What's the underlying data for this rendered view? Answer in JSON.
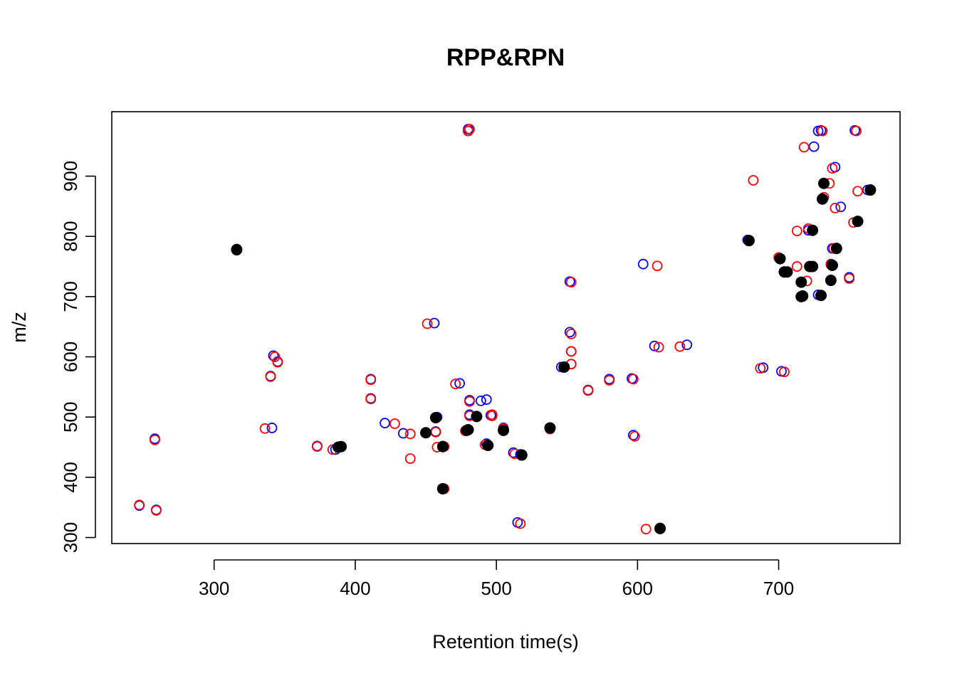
{
  "chart_data": {
    "type": "scatter",
    "title": "RPP&RPN",
    "xlabel": "Retention time(s)",
    "ylabel": "m/z",
    "xlim": [
      227.5,
      786
    ],
    "ylim": [
      290,
      1007
    ],
    "xticks": [
      300,
      400,
      500,
      600,
      700
    ],
    "yticks": [
      300,
      400,
      500,
      600,
      700,
      800,
      900
    ],
    "grid": false,
    "legend": "none",
    "series": [
      {
        "marker": "open-circle",
        "color": "#0000ff",
        "x": [
          247,
          258,
          259,
          316,
          341,
          342,
          345,
          340,
          373,
          386,
          389,
          411,
          411,
          421,
          434,
          456,
          457,
          458,
          462,
          462,
          474,
          479,
          480,
          480,
          481,
          481,
          486,
          489,
          493,
          493,
          496,
          505,
          512,
          515,
          517,
          546,
          552,
          552,
          553,
          553,
          565,
          580,
          596,
          597,
          604,
          612,
          616,
          635,
          678,
          689,
          702,
          721,
          725,
          728,
          728,
          730,
          737,
          738,
          740,
          744,
          750,
          754,
          763
        ],
        "y": [
          353,
          464,
          346,
          779,
          482,
          602,
          592,
          568,
          452,
          446,
          450,
          563,
          531,
          490,
          473,
          656,
          476,
          500,
          381,
          452,
          556,
          478,
          975,
          978,
          528,
          504,
          501,
          527,
          529,
          456,
          503,
          482,
          441,
          325,
          438,
          583,
          725,
          641,
          609,
          588,
          545,
          563,
          564,
          470,
          754,
          618,
          316,
          620,
          794,
          582,
          576,
          810,
          949,
          975,
          703,
          976,
          754,
          780,
          915,
          849,
          732,
          976,
          877
        ]
      },
      {
        "marker": "open-circle",
        "color": "#ff0000",
        "x": [
          247,
          258,
          259,
          316,
          336,
          340,
          343,
          345,
          373,
          384,
          390,
          411,
          411,
          428,
          439,
          439,
          451,
          457,
          458,
          463,
          463,
          471,
          478,
          480,
          481,
          481,
          481,
          492,
          497,
          497,
          505,
          513,
          517,
          538,
          548,
          553,
          553,
          553,
          553,
          565,
          580,
          597,
          598,
          606,
          614,
          615,
          630,
          682,
          687,
          700,
          704,
          713,
          713,
          718,
          720,
          721,
          730,
          731,
          732,
          736,
          737,
          738,
          739,
          740,
          753,
          755,
          756,
          750,
          679
        ],
        "y": [
          354,
          462,
          345,
          777,
          481,
          567,
          600,
          591,
          451,
          446,
          451,
          562,
          530,
          489,
          472,
          431,
          655,
          475,
          450,
          381,
          451,
          555,
          477,
          975,
          978,
          526,
          502,
          454,
          502,
          504,
          481,
          439,
          323,
          480,
          583,
          724,
          638,
          609,
          588,
          544,
          561,
          563,
          468,
          314,
          751,
          616,
          617,
          893,
          581,
          765,
          575,
          809,
          750,
          948,
          726,
          813,
          702,
          975,
          865,
          888,
          753,
          913,
          780,
          847,
          823,
          975,
          875,
          730,
          793
        ]
      },
      {
        "marker": "filled-circle",
        "color": "#000000",
        "x": [
          316,
          388,
          390,
          450,
          457,
          462,
          462,
          479,
          480,
          486,
          494,
          505,
          518,
          538,
          548,
          616,
          679,
          701,
          704,
          706,
          716,
          716,
          717,
          722,
          724,
          724,
          730,
          731,
          732,
          737,
          738,
          738,
          741,
          756,
          765
        ],
        "y": [
          778,
          450,
          451,
          474,
          499,
          451,
          381,
          478,
          479,
          501,
          453,
          478,
          437,
          482,
          583,
          315,
          793,
          763,
          741,
          741,
          724,
          700,
          701,
          750,
          750,
          810,
          702,
          862,
          888,
          727,
          752,
          752,
          780,
          825,
          877
        ]
      }
    ]
  }
}
